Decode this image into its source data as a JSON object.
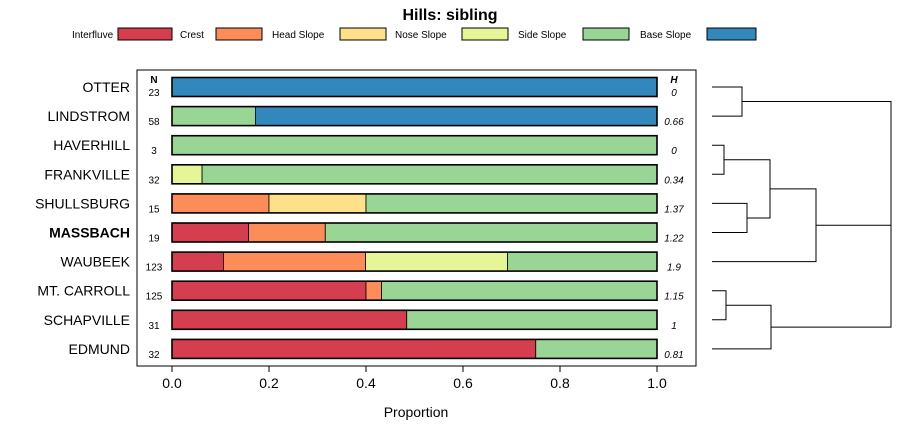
{
  "chart_data": {
    "type": "bar",
    "orientation": "horizontal",
    "stacked": true,
    "title": "Hills: sibling",
    "xlabel": "Proportion",
    "xlim": [
      0,
      1
    ],
    "xticks": [
      "0.0",
      "0.2",
      "0.4",
      "0.6",
      "0.8",
      "1.0"
    ],
    "n_header": "N",
    "h_header": "H",
    "legend_position": "top",
    "legend": [
      {
        "name": "Interfluve",
        "color": "#d53e4f"
      },
      {
        "name": "Crest",
        "color": "#fc8d59"
      },
      {
        "name": "Head Slope",
        "color": "#fee08b"
      },
      {
        "name": "Nose Slope",
        "color": "#e6f598"
      },
      {
        "name": "Side Slope",
        "color": "#99d594"
      },
      {
        "name": "Base Slope",
        "color": "#3288bd"
      }
    ],
    "rows": [
      {
        "label": "OTTER",
        "bold": false,
        "n": "23",
        "h": "0",
        "values": [
          0,
          0,
          0,
          0,
          0,
          1.0
        ]
      },
      {
        "label": "LINDSTROM",
        "bold": false,
        "n": "58",
        "h": "0.66",
        "values": [
          0,
          0,
          0,
          0,
          0.172,
          0.828
        ]
      },
      {
        "label": "HAVERHILL",
        "bold": false,
        "n": "3",
        "h": "0",
        "values": [
          0,
          0,
          0,
          0,
          1.0,
          0
        ]
      },
      {
        "label": "FRANKVILLE",
        "bold": false,
        "n": "32",
        "h": "0.34",
        "values": [
          0,
          0,
          0,
          0.062,
          0.938,
          0
        ]
      },
      {
        "label": "SHULLSBURG",
        "bold": false,
        "n": "15",
        "h": "1.37",
        "values": [
          0,
          0.2,
          0.2,
          0,
          0.6,
          0
        ]
      },
      {
        "label": "MASSBACH",
        "bold": true,
        "n": "19",
        "h": "1.22",
        "values": [
          0.158,
          0.158,
          0,
          0,
          0.684,
          0
        ]
      },
      {
        "label": "WAUBEEK",
        "bold": false,
        "n": "123",
        "h": "1.9",
        "values": [
          0.106,
          0.293,
          0,
          0.293,
          0.308,
          0
        ]
      },
      {
        "label": "MT. CARROLL",
        "bold": false,
        "n": "125",
        "h": "1.15",
        "values": [
          0.4,
          0.032,
          0,
          0,
          0.568,
          0
        ]
      },
      {
        "label": "SCHAPVILLE",
        "bold": false,
        "n": "31",
        "h": "1",
        "values": [
          0.484,
          0,
          0,
          0,
          0.516,
          0
        ]
      },
      {
        "label": "EDMUND",
        "bold": false,
        "n": "32",
        "h": "0.81",
        "values": [
          0.75,
          0,
          0,
          0,
          0.25,
          0
        ]
      }
    ],
    "dendrogram": "[[OTTER, LINDSTROM], [[[HAVERHILL, FRANKVILLE], [SHULLSBURG, MASSBACH]], WAUBEEK]], [[MT. CARROLL, SCHAPVILLE], EDMUND]"
  }
}
